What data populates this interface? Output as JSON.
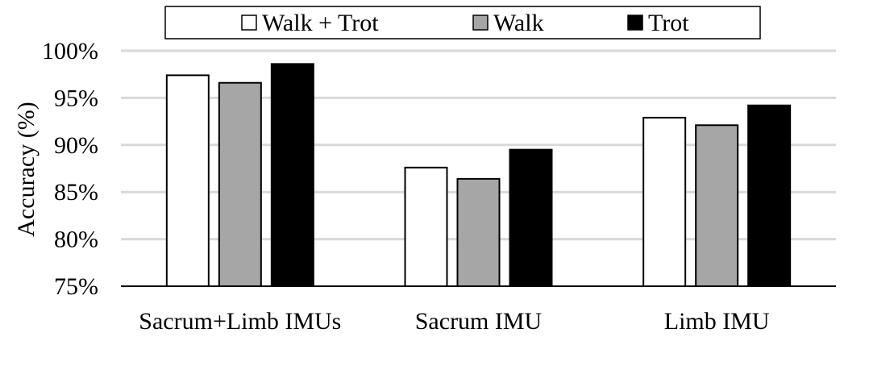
{
  "chart_data": {
    "type": "bar",
    "title": "",
    "xlabel": "",
    "ylabel": "Accuracy (%)",
    "ylim": [
      75,
      100
    ],
    "yticks": [
      "75%",
      "80%",
      "85%",
      "90%",
      "95%",
      "100%"
    ],
    "ytick_values": [
      75,
      80,
      85,
      90,
      95,
      100
    ],
    "categories": [
      "Sacrum+Limb IMUs",
      "Sacrum IMU",
      "Limb IMU"
    ],
    "series": [
      {
        "name": "Walk + Trot",
        "color": "#ffffff",
        "values": [
          97.4,
          87.6,
          92.9
        ]
      },
      {
        "name": "Walk",
        "color": "#a6a6a6",
        "values": [
          96.6,
          86.4,
          92.1
        ]
      },
      {
        "name": "Trot",
        "color": "#000000",
        "values": [
          98.6,
          89.5,
          94.2
        ]
      }
    ],
    "grid": true,
    "legend_position": "top"
  }
}
